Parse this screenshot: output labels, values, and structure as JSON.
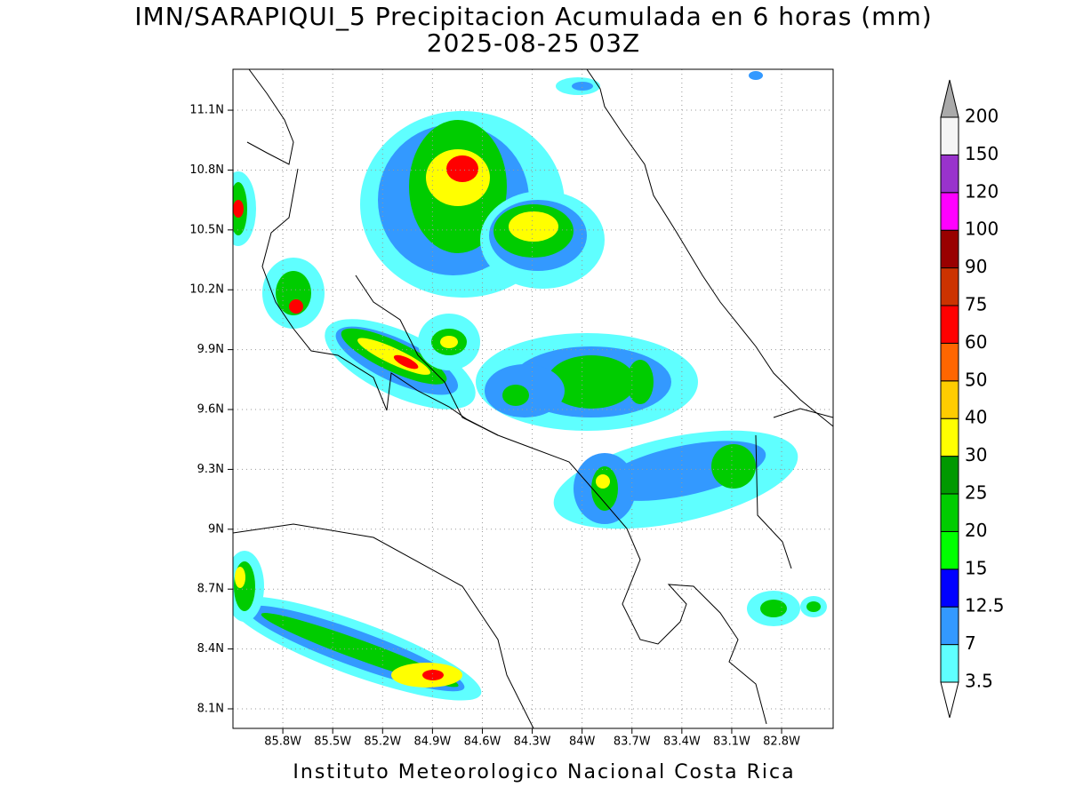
{
  "title": "IMN/SARAPIQUI_5 Precipitacion Acumulada en 6 horas (mm)",
  "subtitle": "2025-08-25 03Z",
  "footer": "Instituto Meteorologico Nacional Costa Rica",
  "map": {
    "xlim": [
      -86.1,
      -82.49
    ],
    "ylim": [
      8.002,
      11.305
    ],
    "xticks": [
      {
        "value": -85.8,
        "label": "85.8W"
      },
      {
        "value": -85.5,
        "label": "85.5W"
      },
      {
        "value": -85.2,
        "label": "85.2W"
      },
      {
        "value": -84.9,
        "label": "84.9W"
      },
      {
        "value": -84.6,
        "label": "84.6W"
      },
      {
        "value": -84.3,
        "label": "84.3W"
      },
      {
        "value": -84,
        "label": "84W"
      },
      {
        "value": -83.7,
        "label": "83.7W"
      },
      {
        "value": -83.4,
        "label": "83.4W"
      },
      {
        "value": -83.1,
        "label": "83.1W"
      },
      {
        "value": -82.8,
        "label": "82.8W"
      }
    ],
    "yticks": [
      {
        "value": 8.1,
        "label": "8.1N"
      },
      {
        "value": 8.4,
        "label": "8.4N"
      },
      {
        "value": 8.7,
        "label": "8.7N"
      },
      {
        "value": 9,
        "label": "9N"
      },
      {
        "value": 9.3,
        "label": "9.3N"
      },
      {
        "value": 9.6,
        "label": "9.6N"
      },
      {
        "value": 9.9,
        "label": "9.9N"
      },
      {
        "value": 10.2,
        "label": "10.2N"
      },
      {
        "value": 10.5,
        "label": "10.5N"
      },
      {
        "value": 10.8,
        "label": "10.8N"
      },
      {
        "value": 11.1,
        "label": "11.1N"
      }
    ],
    "grid": true
  },
  "colorbar": {
    "levels": [
      3.5,
      7,
      12.5,
      15,
      20,
      25,
      30,
      40,
      50,
      60,
      75,
      90,
      100,
      120,
      150,
      200
    ],
    "colors": [
      "#ffffff",
      "#5fffff",
      "#3399ff",
      "#0000ff",
      "#00ff00",
      "#00cc00",
      "#009900",
      "#ffff00",
      "#ffcc00",
      "#ff6600",
      "#ff0000",
      "#cc3300",
      "#990000",
      "#ff00ff",
      "#9933cc",
      "#f5f5f5",
      "#aaaaaa"
    ]
  }
}
